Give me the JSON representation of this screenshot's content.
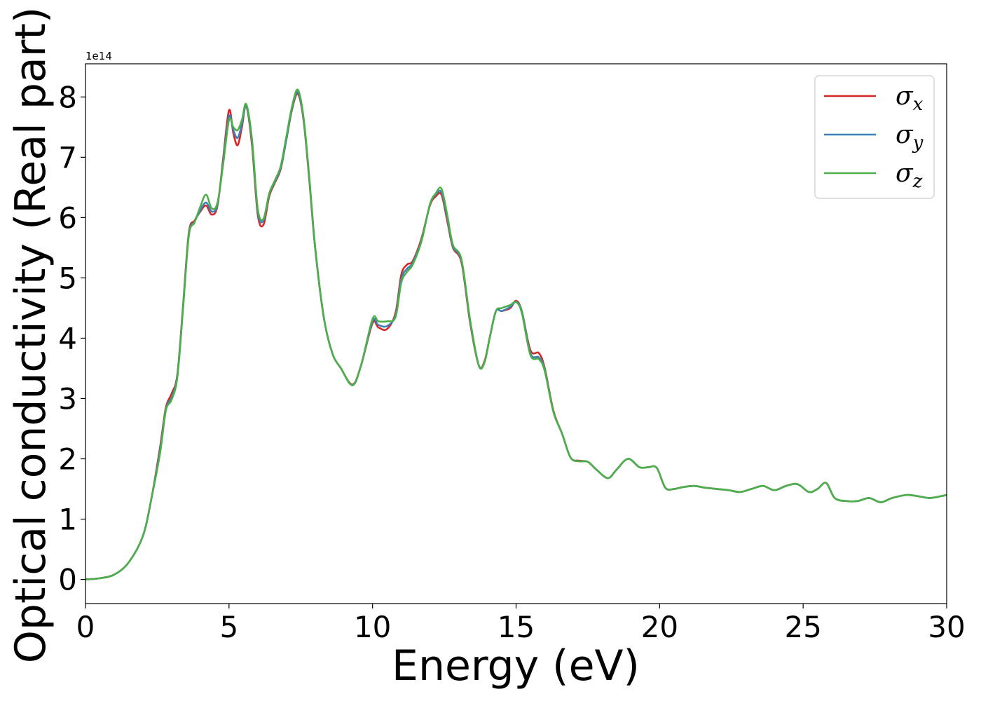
{
  "chart_data": {
    "type": "line",
    "xlabel": "Energy (eV)",
    "ylabel": "Optical conductivity (Real part)",
    "offset_text": "1e14",
    "xlim": [
      0,
      30
    ],
    "ylim": [
      -0.4,
      8.55
    ],
    "xticks": [
      0,
      5,
      10,
      15,
      20,
      25,
      30
    ],
    "xtick_labels": [
      "0",
      "5",
      "10",
      "15",
      "20",
      "25",
      "30"
    ],
    "yticks": [
      0,
      1,
      2,
      3,
      4,
      5,
      6,
      7,
      8
    ],
    "ytick_labels": [
      "0",
      "1",
      "2",
      "3",
      "4",
      "5",
      "6",
      "7",
      "8"
    ],
    "y_scale_factor": 100000000000000.0,
    "grid": false,
    "legend_position": "top-right",
    "x": [
      0,
      0.5,
      1.0,
      1.5,
      2.0,
      2.3,
      2.6,
      2.8,
      3.0,
      3.2,
      3.4,
      3.6,
      3.8,
      4.0,
      4.2,
      4.4,
      4.6,
      4.8,
      5.0,
      5.15,
      5.3,
      5.45,
      5.6,
      5.8,
      6.0,
      6.2,
      6.4,
      6.6,
      6.8,
      7.0,
      7.2,
      7.4,
      7.6,
      7.8,
      8.0,
      8.3,
      8.6,
      8.9,
      9.3,
      9.6,
      10.0,
      10.2,
      10.5,
      10.8,
      11.0,
      11.2,
      11.4,
      11.7,
      12.0,
      12.2,
      12.4,
      12.6,
      12.8,
      13.1,
      13.4,
      13.7,
      13.9,
      14.1,
      14.3,
      14.5,
      14.8,
      15.0,
      15.2,
      15.5,
      15.8,
      16.0,
      16.3,
      16.6,
      16.9,
      17.2,
      17.5,
      17.8,
      18.2,
      18.5,
      18.9,
      19.3,
      19.6,
      19.9,
      20.2,
      20.5,
      20.8,
      21.2,
      21.6,
      22.0,
      22.4,
      22.8,
      23.2,
      23.6,
      24.0,
      24.4,
      24.8,
      25.2,
      25.5,
      25.8,
      26.1,
      26.5,
      26.9,
      27.3,
      27.7,
      28.1,
      28.6,
      29.0,
      29.4,
      29.8,
      30.0
    ],
    "series": [
      {
        "name": "σx",
        "subscript": "x",
        "color": "#d62728",
        "values": [
          0.0,
          0.02,
          0.08,
          0.28,
          0.72,
          1.35,
          2.2,
          2.85,
          3.08,
          3.4,
          4.55,
          5.75,
          5.95,
          6.1,
          6.2,
          6.05,
          6.2,
          7.0,
          7.78,
          7.4,
          7.2,
          7.5,
          7.85,
          7.2,
          6.05,
          5.88,
          6.35,
          6.58,
          6.8,
          7.3,
          7.8,
          8.05,
          7.6,
          6.6,
          5.5,
          4.35,
          3.75,
          3.5,
          3.23,
          3.55,
          4.25,
          4.18,
          4.15,
          4.42,
          5.05,
          5.22,
          5.28,
          5.65,
          6.2,
          6.35,
          6.38,
          5.95,
          5.5,
          5.25,
          4.25,
          3.55,
          3.62,
          4.05,
          4.45,
          4.45,
          4.5,
          4.62,
          4.45,
          3.8,
          3.75,
          3.5,
          2.8,
          2.42,
          2.02,
          1.97,
          1.95,
          1.82,
          1.68,
          1.82,
          2.0,
          1.86,
          1.86,
          1.85,
          1.52,
          1.5,
          1.53,
          1.55,
          1.52,
          1.5,
          1.48,
          1.45,
          1.5,
          1.55,
          1.48,
          1.55,
          1.58,
          1.45,
          1.5,
          1.6,
          1.35,
          1.3,
          1.3,
          1.35,
          1.28,
          1.35,
          1.4,
          1.38,
          1.35,
          1.38,
          1.4
        ]
      },
      {
        "name": "σy",
        "subscript": "y",
        "color": "#3f7fb5",
        "values": [
          0.0,
          0.02,
          0.08,
          0.28,
          0.72,
          1.35,
          2.15,
          2.82,
          3.02,
          3.38,
          4.52,
          5.72,
          5.93,
          6.12,
          6.25,
          6.1,
          6.22,
          6.95,
          7.68,
          7.45,
          7.32,
          7.55,
          7.85,
          7.25,
          6.1,
          5.95,
          6.38,
          6.6,
          6.82,
          7.3,
          7.82,
          8.08,
          7.62,
          6.62,
          5.5,
          4.35,
          3.75,
          3.5,
          3.22,
          3.55,
          4.28,
          4.22,
          4.2,
          4.38,
          4.98,
          5.15,
          5.25,
          5.62,
          6.22,
          6.38,
          6.42,
          6.0,
          5.52,
          5.28,
          4.28,
          3.55,
          3.6,
          4.05,
          4.45,
          4.45,
          4.52,
          4.6,
          4.45,
          3.75,
          3.68,
          3.48,
          2.78,
          2.42,
          2.02,
          1.96,
          1.95,
          1.82,
          1.68,
          1.82,
          2.0,
          1.86,
          1.86,
          1.85,
          1.52,
          1.5,
          1.53,
          1.55,
          1.52,
          1.5,
          1.48,
          1.45,
          1.5,
          1.55,
          1.48,
          1.55,
          1.58,
          1.45,
          1.5,
          1.6,
          1.35,
          1.3,
          1.3,
          1.35,
          1.28,
          1.35,
          1.4,
          1.38,
          1.35,
          1.38,
          1.4
        ]
      },
      {
        "name": "σz",
        "subscript": "z",
        "color": "#4daf4a",
        "values": [
          0.0,
          0.02,
          0.08,
          0.28,
          0.72,
          1.35,
          2.1,
          2.8,
          2.98,
          3.35,
          4.5,
          5.7,
          5.92,
          6.18,
          6.38,
          6.15,
          6.25,
          6.9,
          7.62,
          7.5,
          7.45,
          7.62,
          7.88,
          7.3,
          6.15,
          5.98,
          6.4,
          6.62,
          6.85,
          7.35,
          7.85,
          8.12,
          7.65,
          6.65,
          5.52,
          4.35,
          3.75,
          3.5,
          3.22,
          3.55,
          4.32,
          4.28,
          4.28,
          4.35,
          4.92,
          5.1,
          5.22,
          5.6,
          6.22,
          6.4,
          6.48,
          6.05,
          5.55,
          5.3,
          4.3,
          3.55,
          3.6,
          4.05,
          4.45,
          4.5,
          4.55,
          4.6,
          4.42,
          3.72,
          3.65,
          3.45,
          2.78,
          2.42,
          2.02,
          1.96,
          1.95,
          1.82,
          1.68,
          1.82,
          2.0,
          1.86,
          1.86,
          1.85,
          1.52,
          1.5,
          1.53,
          1.55,
          1.52,
          1.5,
          1.48,
          1.45,
          1.5,
          1.55,
          1.48,
          1.55,
          1.58,
          1.45,
          1.5,
          1.6,
          1.35,
          1.3,
          1.3,
          1.35,
          1.28,
          1.35,
          1.4,
          1.38,
          1.35,
          1.38,
          1.4
        ]
      }
    ]
  }
}
